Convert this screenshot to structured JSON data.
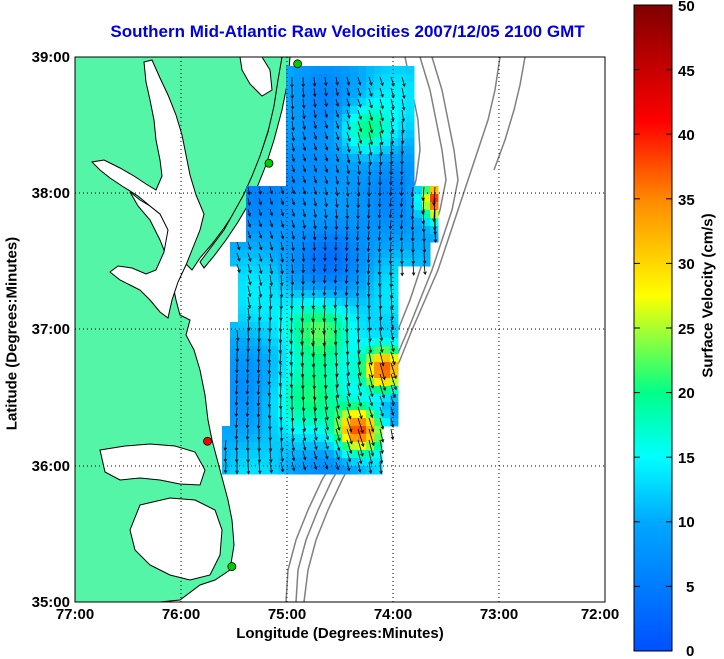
{
  "title": "Southern Mid-Atlantic Raw Velocities 2007/12/05 2100 GMT",
  "x_axis": {
    "label": "Longitude (Degrees:Minutes)",
    "ticks": [
      "77:00",
      "76:00",
      "75:00",
      "74:00",
      "73:00",
      "72:00"
    ]
  },
  "y_axis": {
    "label": "Latitude (Degrees:Minutes)",
    "ticks": [
      "39:00",
      "38:00",
      "37:00",
      "36:00",
      "35:00"
    ]
  },
  "colorbar": {
    "label": "Surface Velocity (cm/s)",
    "ticks": [
      "50",
      "45",
      "40",
      "35",
      "30",
      "25",
      "20",
      "15",
      "10",
      "5",
      "0"
    ],
    "min": 0,
    "max": 50,
    "colors": [
      "#0050ff",
      "#00ffff",
      "#ffff00",
      "#ff0000",
      "#800000"
    ]
  },
  "map": {
    "lon_range": [
      -77,
      -72
    ],
    "lat_range": [
      35,
      39
    ],
    "land_color": "#55f5a8",
    "coast_color": "#000000",
    "bathymetry_color": "#808080",
    "grid": "dotted",
    "stations": [
      {
        "lon": -74.9,
        "lat": 38.95,
        "color": "#00cc00"
      },
      {
        "lon": -75.17,
        "lat": 38.22,
        "color": "#00cc00"
      },
      {
        "lon": -75.75,
        "lat": 36.18,
        "color": "#ff0000"
      },
      {
        "lon": -75.52,
        "lat": 35.26,
        "color": "#00cc00"
      }
    ]
  }
}
